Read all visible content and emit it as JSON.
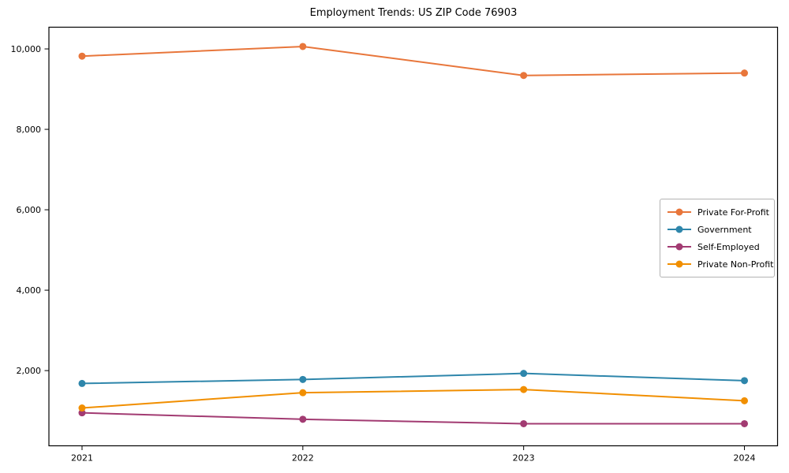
{
  "title": "Employment Trends: US ZIP Code 76903",
  "chart_data": {
    "type": "line",
    "title": "Employment Trends: US ZIP Code 76903",
    "xlabel": "",
    "ylabel": "",
    "categories": [
      "2021",
      "2022",
      "2023",
      "2024"
    ],
    "series": [
      {
        "name": "Private For-Profit",
        "color": "#E8763B",
        "values": [
          9820,
          10060,
          9340,
          9400
        ]
      },
      {
        "name": "Government",
        "color": "#2E86AB",
        "values": [
          1680,
          1780,
          1930,
          1750
        ]
      },
      {
        "name": "Self-Employed",
        "color": "#A23B72",
        "values": [
          950,
          790,
          680,
          680
        ]
      },
      {
        "name": "Private Non-Profit",
        "color": "#F18F01",
        "values": [
          1070,
          1450,
          1530,
          1250
        ]
      }
    ],
    "yticks": [
      2000,
      4000,
      6000,
      8000,
      10000
    ],
    "ytick_labels": [
      "2,000",
      "4,000",
      "6,000",
      "8,000",
      "10,000"
    ],
    "ylim": [
      130,
      10540
    ],
    "grid": false,
    "legend_position": "center-right",
    "axis_color": "#000000",
    "background_color": "#ffffff",
    "marker": "circle"
  }
}
